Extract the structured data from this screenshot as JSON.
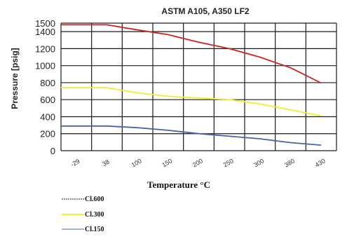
{
  "chart_data": {
    "type": "line",
    "title": "ASTM A105, A350 LF2",
    "xlabel": "Temperature °C",
    "ylabel": "Pressure [psig]",
    "categories": [
      "-29",
      "38",
      "100",
      "150",
      "200",
      "250",
      "300",
      "380",
      "430"
    ],
    "ylim": [
      0,
      1500
    ],
    "yticks": [
      0,
      200,
      400,
      600,
      800,
      1000,
      1200,
      1400,
      1500
    ],
    "grid": true,
    "legend_position": "bottom-left",
    "series": [
      {
        "name": "Cl.600",
        "color": "#cc2222",
        "values": [
          1480,
          1480,
          1420,
          1365,
          1275,
          1200,
          1100,
          975,
          795
        ],
        "legend_dash": "dashed"
      },
      {
        "name": "Cl.300",
        "color": "#f0f030",
        "values": [
          740,
          740,
          680,
          640,
          620,
          600,
          550,
          480,
          410
        ],
        "legend_dash": "solid"
      },
      {
        "name": "Cl.150",
        "color": "#4a64a8",
        "values": [
          290,
          290,
          270,
          240,
          200,
          170,
          140,
          95,
          65
        ],
        "legend_dash": "dashed"
      }
    ]
  }
}
